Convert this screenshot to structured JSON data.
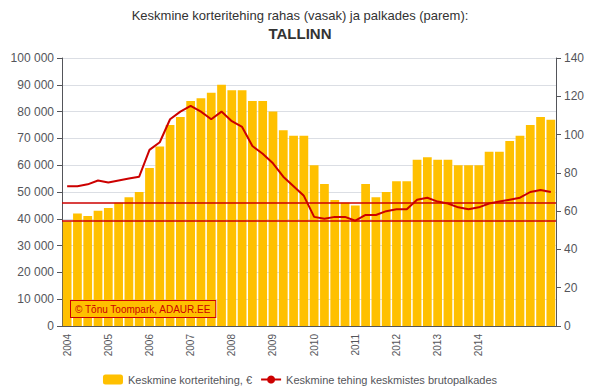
{
  "chart_data": {
    "type": "bar",
    "title": "Keskmine korteritehing rahas (vasak) ja palkades (parem):",
    "subtitle": "TALLINN",
    "categories": [
      "2004",
      null,
      null,
      null,
      "2005",
      null,
      null,
      null,
      "2006",
      null,
      null,
      null,
      "2007",
      null,
      null,
      null,
      "2008",
      null,
      null,
      null,
      "2009",
      null,
      null,
      null,
      "2010",
      null,
      null,
      null,
      "2011",
      null,
      null,
      null,
      "2012",
      null,
      null,
      null,
      "2013",
      null,
      null,
      null,
      "2014",
      null,
      null,
      null,
      null,
      null,
      null,
      null
    ],
    "series": [
      {
        "name": "Keskmine korteritehing, €",
        "type": "bar",
        "color": "#FFC000",
        "values": [
          39000,
          42000,
          41000,
          43000,
          44000,
          46000,
          48000,
          50000,
          59000,
          67000,
          75000,
          78000,
          84000,
          85000,
          87000,
          90000,
          88000,
          88000,
          84000,
          84000,
          80000,
          73000,
          71000,
          71000,
          60000,
          53000,
          47000,
          46000,
          45000,
          53000,
          48000,
          50000,
          54000,
          54000,
          62000,
          63000,
          62000,
          62000,
          60000,
          60000,
          60000,
          65000,
          65000,
          69000,
          71000,
          75000,
          78000,
          77000
        ]
      },
      {
        "name": "Keskmine tehing keskmistes brutopalkades",
        "type": "line",
        "color": "#CC0000",
        "axis": "y2",
        "values": [
          73,
          73,
          74,
          76,
          75,
          76,
          77,
          78,
          92,
          96,
          108,
          112,
          115,
          112,
          108,
          112,
          107,
          104,
          94,
          90,
          85,
          78,
          73,
          68,
          57,
          56,
          57,
          57,
          55,
          58,
          58,
          60,
          61,
          61,
          66,
          67,
          65,
          64,
          62,
          61,
          62,
          64,
          65,
          66,
          67,
          70,
          71,
          70
        ]
      }
    ],
    "ylim": [
      0,
      100000
    ],
    "yticks": [
      0,
      {
        "value": 10000,
        "label": "10 000"
      },
      {
        "value": 20000,
        "label": "20 000"
      },
      {
        "value": 30000,
        "label": "30 000"
      },
      {
        "value": 40000,
        "label": "40 000"
      },
      {
        "value": 50000,
        "label": "50 000"
      },
      {
        "value": 60000,
        "label": "60 000"
      },
      {
        "value": 70000,
        "label": "70 000"
      },
      {
        "value": 80000,
        "label": "80 000"
      },
      {
        "value": 90000,
        "label": "90 000"
      },
      {
        "value": 100000,
        "label": "100 000"
      }
    ],
    "y2lim": [
      0,
      140
    ],
    "y2ticks": [
      0,
      20,
      40,
      60,
      80,
      100,
      120,
      140
    ],
    "grid": true,
    "legend": "bottom",
    "reference_lines": [
      {
        "value": 46000,
        "axis": "y",
        "color": "#CC0000"
      },
      {
        "value": 55,
        "axis": "y2",
        "color": "#CC0000"
      }
    ],
    "annotations": [
      {
        "text": "© Tõnu Toompark, ADAUR.EE",
        "color": "#CC0000",
        "background": "#FFC000"
      }
    ]
  }
}
